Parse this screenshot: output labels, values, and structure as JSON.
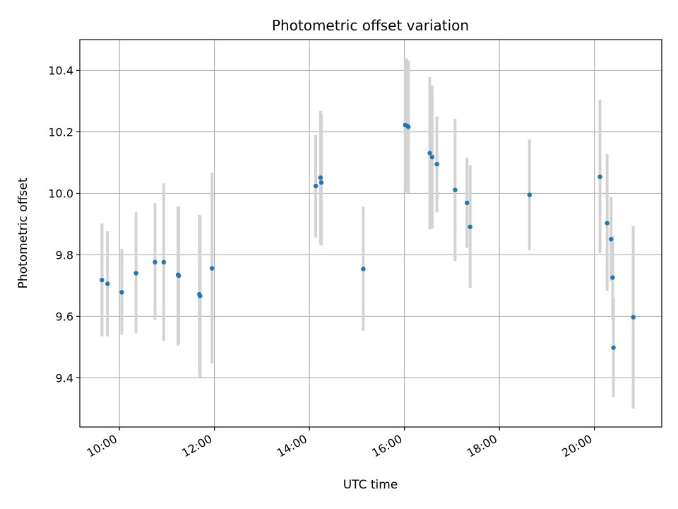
{
  "chart_data": {
    "type": "scatter",
    "title": "Photometric offset variation",
    "xlabel": "UTC time",
    "ylabel": "Photometric offset",
    "x_unit": "time of day",
    "xlim": [
      "09:10",
      "21:25"
    ],
    "ylim": [
      9.24,
      10.5
    ],
    "grid": true,
    "colors": {
      "points": "#1f77b4",
      "error_bars": "#d3d3d3",
      "grid": "#b0b0b0",
      "frame": "#000000"
    },
    "x_ticks": [
      "10:00",
      "12:00",
      "14:00",
      "16:00",
      "18:00",
      "20:00"
    ],
    "y_ticks": [
      "9.4",
      "9.6",
      "9.8",
      "10.0",
      "10.2",
      "10.4"
    ],
    "series": [
      {
        "points": [
          {
            "x": "09:38",
            "y": 9.718,
            "yerr_low": 9.535,
            "yerr_high": 9.902
          },
          {
            "x": "09:45",
            "y": 9.706,
            "yerr_low": 9.535,
            "yerr_high": 9.877
          },
          {
            "x": "10:03",
            "y": 9.678,
            "yerr_low": 9.54,
            "yerr_high": 9.818
          },
          {
            "x": "10:21",
            "y": 9.74,
            "yerr_low": 9.545,
            "yerr_high": 9.938
          },
          {
            "x": "10:45",
            "y": 9.776,
            "yerr_low": 9.588,
            "yerr_high": 9.968
          },
          {
            "x": "10:56",
            "y": 9.776,
            "yerr_low": 9.52,
            "yerr_high": 10.033
          },
          {
            "x": "11:14",
            "y": 9.735,
            "yerr_low": 9.505,
            "yerr_high": 9.957
          },
          {
            "x": "11:15",
            "y": 9.732,
            "yerr_low": 9.51,
            "yerr_high": 9.955
          },
          {
            "x": "11:41",
            "y": 9.672,
            "yerr_low": 9.41,
            "yerr_high": 9.93
          },
          {
            "x": "11:42",
            "y": 9.666,
            "yerr_low": 9.4,
            "yerr_high": 9.925
          },
          {
            "x": "11:57",
            "y": 9.756,
            "yerr_low": 9.447,
            "yerr_high": 10.067
          },
          {
            "x": "14:08",
            "y": 10.024,
            "yerr_low": 9.856,
            "yerr_high": 10.19
          },
          {
            "x": "14:14",
            "y": 10.051,
            "yerr_low": 9.835,
            "yerr_high": 10.268
          },
          {
            "x": "14:15",
            "y": 10.035,
            "yerr_low": 9.83,
            "yerr_high": 10.258
          },
          {
            "x": "15:08",
            "y": 9.754,
            "yerr_low": 9.553,
            "yerr_high": 9.956
          },
          {
            "x": "16:01",
            "y": 10.222,
            "yerr_low": 10.005,
            "yerr_high": 10.44
          },
          {
            "x": "16:03",
            "y": 10.22,
            "yerr_low": 10.003,
            "yerr_high": 10.438
          },
          {
            "x": "16:05",
            "y": 10.216,
            "yerr_low": 10.0,
            "yerr_high": 10.432
          },
          {
            "x": "16:32",
            "y": 10.131,
            "yerr_low": 9.883,
            "yerr_high": 10.378
          },
          {
            "x": "16:35",
            "y": 10.118,
            "yerr_low": 9.885,
            "yerr_high": 10.35
          },
          {
            "x": "16:41",
            "y": 10.095,
            "yerr_low": 9.938,
            "yerr_high": 10.25
          },
          {
            "x": "17:04",
            "y": 10.011,
            "yerr_low": 9.78,
            "yerr_high": 10.242
          },
          {
            "x": "17:19",
            "y": 9.969,
            "yerr_low": 9.823,
            "yerr_high": 10.115
          },
          {
            "x": "17:23",
            "y": 9.891,
            "yerr_low": 9.693,
            "yerr_high": 10.092
          },
          {
            "x": "18:38",
            "y": 9.995,
            "yerr_low": 9.815,
            "yerr_high": 10.175
          },
          {
            "x": "20:07",
            "y": 10.054,
            "yerr_low": 9.805,
            "yerr_high": 10.305
          },
          {
            "x": "20:16",
            "y": 9.903,
            "yerr_low": 9.682,
            "yerr_high": 10.127
          },
          {
            "x": "20:21",
            "y": 9.851,
            "yerr_low": 9.715,
            "yerr_high": 9.988
          },
          {
            "x": "20:23",
            "y": 9.726,
            "yerr_low": 9.59,
            "yerr_high": 9.862
          },
          {
            "x": "20:24",
            "y": 9.498,
            "yerr_low": 9.337,
            "yerr_high": 9.66
          },
          {
            "x": "20:49",
            "y": 9.597,
            "yerr_low": 9.3,
            "yerr_high": 9.895
          }
        ]
      }
    ]
  }
}
